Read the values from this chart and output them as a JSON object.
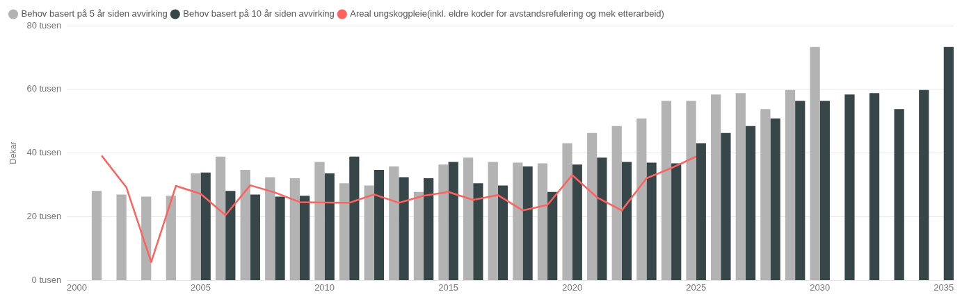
{
  "chart_data": {
    "type": "bar",
    "ylabel": "Dekar",
    "xlim": [
      1999.6,
      2035.4
    ],
    "xticks": [
      2000,
      2005,
      2010,
      2015,
      2020,
      2025,
      2030,
      2035
    ],
    "ylim": [
      0,
      80
    ],
    "yticks": [
      {
        "value": 0,
        "label": "0 tusen"
      },
      {
        "value": 20,
        "label": "20 tusen"
      },
      {
        "value": 40,
        "label": "40 tusen"
      },
      {
        "value": 60,
        "label": "60 tusen"
      },
      {
        "value": 80,
        "label": "80 tusen"
      }
    ],
    "grid": "y",
    "legend": "top left",
    "marker": "none",
    "series": [
      {
        "name": "Behov basert på 5 år siden avvirking",
        "color": "#b3b3b3",
        "x": [
          2001,
          2002,
          2003,
          2004,
          2005,
          2006,
          2007,
          2008,
          2009,
          2010,
          2011,
          2012,
          2013,
          2014,
          2015,
          2016,
          2017,
          2018,
          2019,
          2020,
          2021,
          2022,
          2023,
          2024,
          2025,
          2026,
          2027,
          2028,
          2029,
          2030
        ],
        "values": [
          28.1,
          27.0,
          26.3,
          26.6,
          33.6,
          38.9,
          34.7,
          32.4,
          32.1,
          37.2,
          30.5,
          29.8,
          35.8,
          27.8,
          36.4,
          38.6,
          37.2,
          37.0,
          36.8,
          43.1,
          46.3,
          48.5,
          50.9,
          56.4,
          56.4,
          58.4,
          58.8,
          53.8,
          59.8,
          73.3
        ]
      },
      {
        "name": "Behov basert på 10 år siden avvirking",
        "color": "#374649",
        "x": [
          2005,
          2006,
          2007,
          2008,
          2009,
          2010,
          2011,
          2012,
          2013,
          2014,
          2015,
          2016,
          2017,
          2018,
          2019,
          2020,
          2021,
          2022,
          2023,
          2024,
          2025,
          2026,
          2027,
          2028,
          2029,
          2030,
          2031,
          2032,
          2033,
          2034,
          2035
        ],
        "values": [
          33.9,
          28.1,
          27.0,
          26.3,
          26.6,
          33.6,
          38.9,
          34.7,
          32.4,
          32.1,
          37.2,
          30.5,
          29.8,
          35.8,
          27.8,
          36.4,
          38.6,
          37.2,
          37.0,
          36.8,
          43.1,
          46.3,
          48.5,
          50.9,
          56.4,
          56.4,
          58.4,
          58.8,
          53.8,
          59.8,
          73.3
        ]
      },
      {
        "name": "Areal ungskogpleie(inkl. eldre koder for avstandsrefulering og mek etterarbeid)",
        "type": "line",
        "color": "#fd625e",
        "x": [
          2001,
          2002,
          2003,
          2004,
          2005,
          2006,
          2007,
          2008,
          2009,
          2010,
          2011,
          2012,
          2013,
          2014,
          2015,
          2016,
          2017,
          2018,
          2019,
          2020,
          2021,
          2022,
          2023,
          2024,
          2025
        ],
        "values": [
          39.2,
          29.2,
          5.8,
          29.7,
          27.2,
          20.5,
          29.9,
          27.6,
          24.6,
          24.5,
          24.4,
          27.0,
          24.4,
          26.6,
          27.8,
          25.3,
          26.8,
          22.0,
          23.7,
          33.1,
          26.1,
          22.0,
          32.1,
          35.3,
          38.9
        ]
      }
    ]
  }
}
